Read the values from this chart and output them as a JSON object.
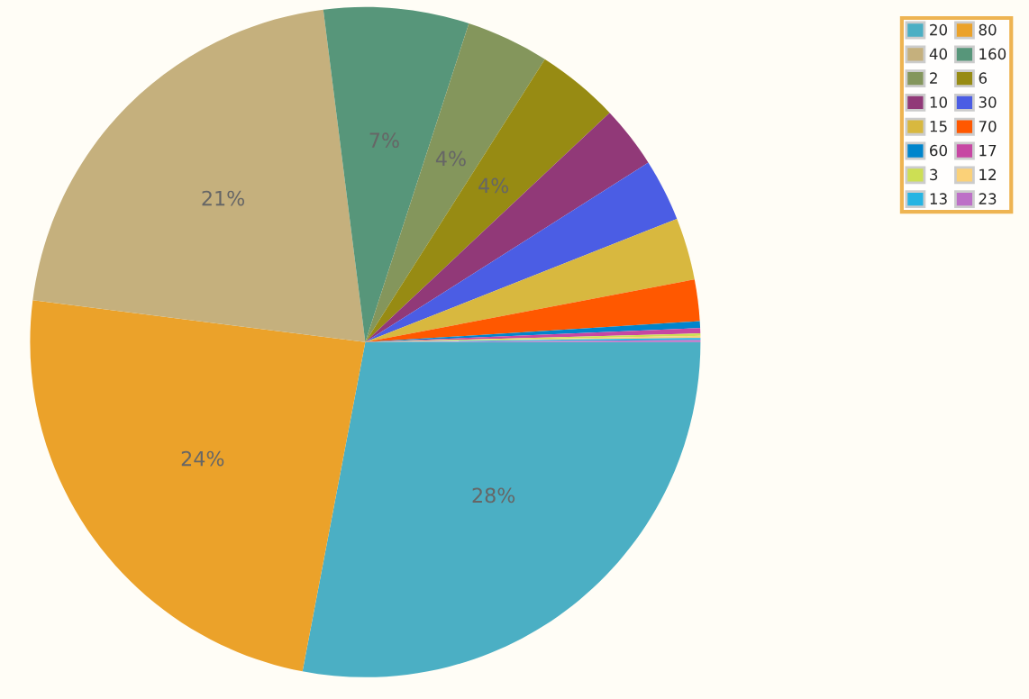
{
  "chart_data": {
    "type": "pie",
    "categories": [
      "20",
      "80",
      "40",
      "160",
      "2",
      "6",
      "10",
      "30",
      "15",
      "70",
      "60",
      "17",
      "3",
      "12",
      "13",
      "23"
    ],
    "values": [
      28,
      24,
      21,
      7,
      4,
      4,
      3.0,
      3.0,
      3.0,
      2.0,
      0.33,
      0.25,
      0.12,
      0.1,
      0.1,
      0.1
    ],
    "colors": [
      "#4bafc4",
      "#eba22a",
      "#c5b07d",
      "#57967a",
      "#84965c",
      "#978b13",
      "#913978",
      "#4b5de4",
      "#d8b83f",
      "#ff5800",
      "#0085cc",
      "#c747a3",
      "#cddf54",
      "#fbd178",
      "#26b4e3",
      "#bd70c7"
    ],
    "value_labels": [
      "28%",
      "24%",
      "21%",
      "7%",
      "4%",
      "4%",
      null,
      null,
      null,
      null,
      null,
      null,
      null,
      null,
      null,
      null
    ],
    "legend": "top right"
  }
}
